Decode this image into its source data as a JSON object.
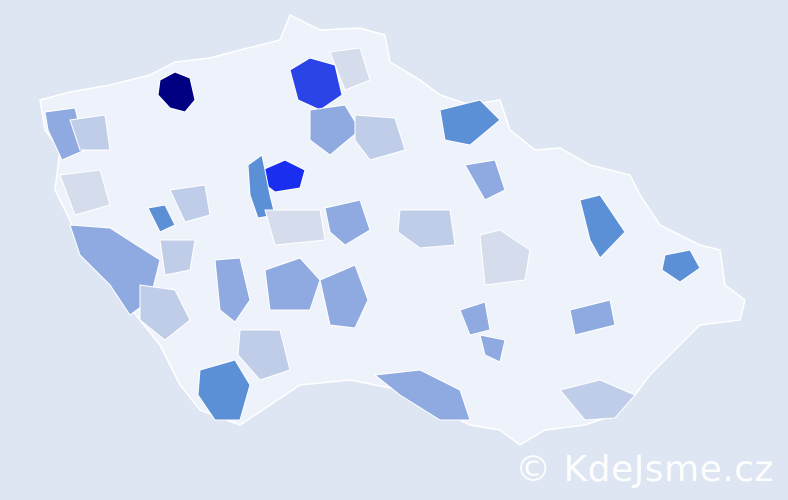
{
  "watermark": "© KdeJsme.cz",
  "colors": {
    "background": "#dde6f2",
    "base": "#eef2fa",
    "border": "#ffffff",
    "level1": "#d5dcec",
    "level2": "#c0cde9",
    "level3": "#8eaae0",
    "level4": "#5b8fd6",
    "level5": "#2a44e8",
    "level6": "#1a2ef0",
    "level7": "#000080"
  }
}
